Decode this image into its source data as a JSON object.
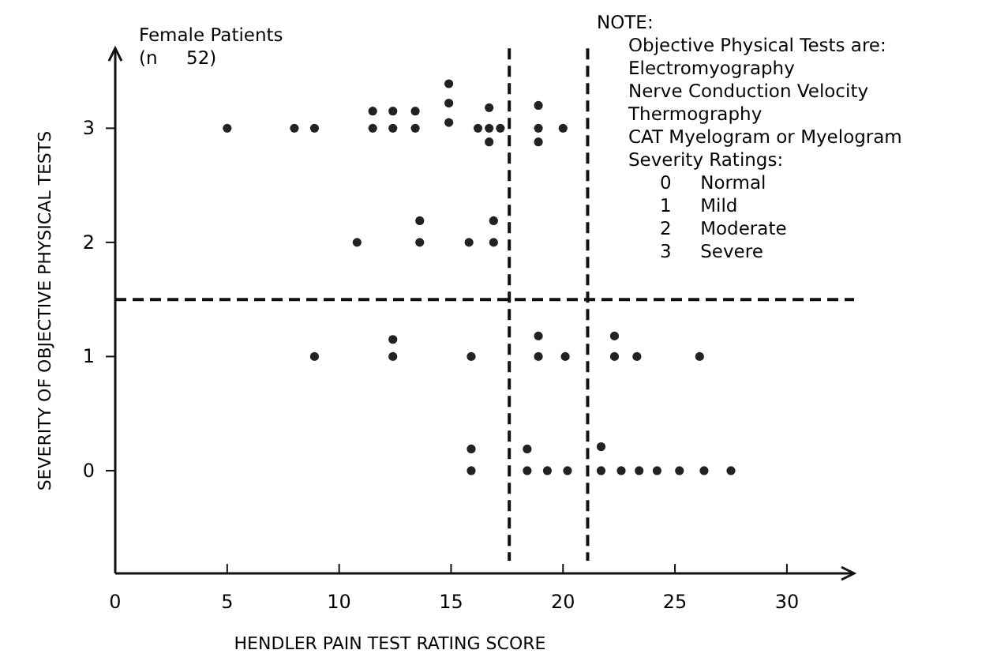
{
  "chart_data": {
    "type": "scatter",
    "xlabel": "HENDLER PAIN TEST RATING SCORE",
    "ylabel": "SEVERITY OF OBJECTIVE PHYSICAL TESTS",
    "annotations": [
      "Female Patients\n(n     52)",
      "NOTE:\nObjective Physical Tests are:\nElectromyography\nNerve Conduction Velocity\nThermography\nCAT Myelogram or Myelogram\nSeverity Ratings:\n0     Normal\n1     Mild\n2     Moderate\n3     Severe"
    ],
    "xlim": [
      0,
      33
    ],
    "xticks": [
      0,
      5,
      10,
      15,
      20,
      25,
      30
    ],
    "ylim": [
      -0.9,
      3.7
    ],
    "yticks": [
      0,
      1,
      2,
      3
    ],
    "grid": false,
    "marker": "circle",
    "ref_lines": [
      {
        "axis": "x",
        "value": 17.6,
        "line_style": "dashed"
      },
      {
        "axis": "x",
        "value": 21.1,
        "line_style": "dashed"
      },
      {
        "axis": "y",
        "value": 1.5,
        "line_style": "dashed"
      }
    ],
    "series": [
      {
        "color": "#222222",
        "x": [
          5,
          8,
          8.9,
          11.5,
          11.5,
          12.4,
          12.4,
          13.4,
          13.4,
          14.9,
          14.9,
          14.9,
          16.2,
          16.7,
          16.7,
          16.7,
          17.2,
          18.9,
          18.9,
          18.9,
          20,
          10.8,
          13.6,
          13.6,
          15.8,
          16.9,
          16.9,
          8.9,
          12.4,
          12.4,
          15.9,
          18.9,
          18.9,
          20.1,
          22.3,
          22.3,
          23.3,
          26.1,
          15.9,
          15.9,
          18.4,
          18.4,
          19.3,
          20.2,
          21.7,
          21.7,
          22.6,
          23.4,
          24.2,
          25.2,
          26.3,
          27.5
        ],
        "values": [
          3,
          3,
          3,
          3,
          3.15,
          3,
          3.15,
          3,
          3.15,
          3.05,
          3.22,
          3.39,
          3,
          3.18,
          3,
          2.88,
          3,
          3.2,
          3,
          2.88,
          3,
          2,
          2,
          2.19,
          2,
          2,
          2.19,
          1,
          1,
          1.15,
          1,
          1.18,
          1,
          1,
          1.18,
          1,
          1,
          1,
          0,
          0.19,
          0,
          0.19,
          0,
          0,
          0,
          0.21,
          0,
          0,
          0,
          0,
          0,
          0
        ]
      }
    ]
  }
}
